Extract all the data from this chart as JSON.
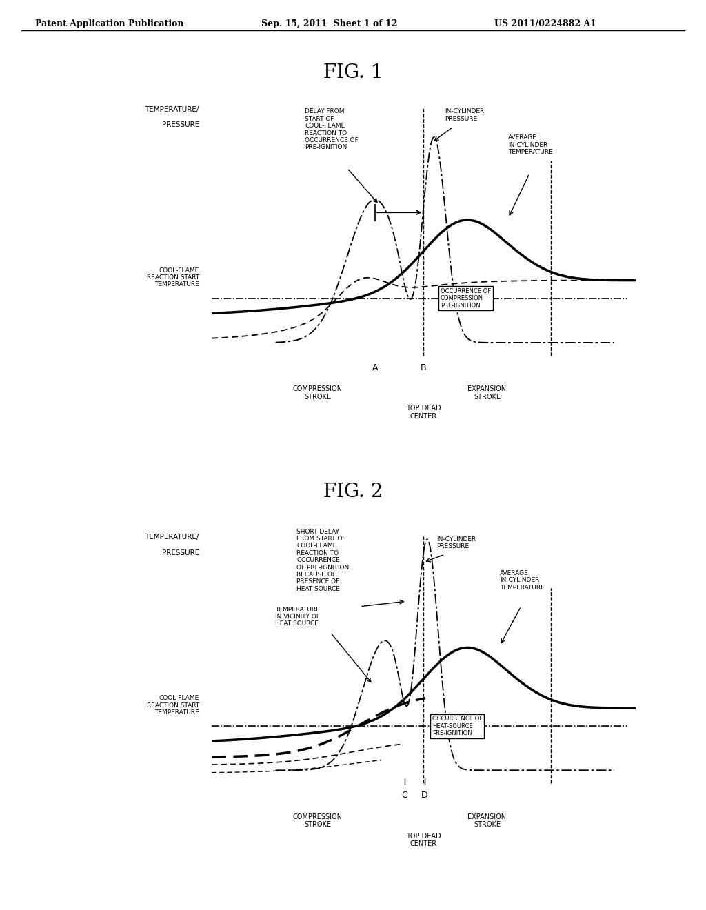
{
  "header_left": "Patent Application Publication",
  "header_center": "Sep. 15, 2011  Sheet 1 of 12",
  "header_right": "US 2011/0224882 A1",
  "fig1_title": "FIG. 1",
  "fig2_title": "FIG. 2",
  "bg_color": "#ffffff"
}
